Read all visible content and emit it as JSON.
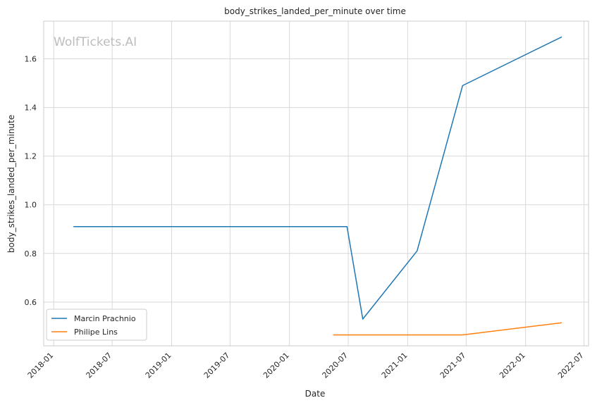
{
  "chart_data": {
    "type": "line",
    "title": "body_strikes_landed_per_minute over time",
    "xlabel": "Date",
    "ylabel": "body_strikes_landed_per_minute",
    "watermark": "WolfTickets.AI",
    "xlim": [
      "2017-12-01",
      "2022-07-15"
    ],
    "ylim": [
      0.42,
      1.755
    ],
    "x_ticks": [
      "2018-01",
      "2018-07",
      "2019-01",
      "2019-07",
      "2020-01",
      "2020-07",
      "2021-01",
      "2021-07",
      "2022-01",
      "2022-07"
    ],
    "y_ticks": [
      "0.6",
      "0.8",
      "1.0",
      "1.2",
      "1.4",
      "1.6"
    ],
    "grid": true,
    "legend_position": "lower-left",
    "series": [
      {
        "name": "Marcin Prachnio",
        "color": "#1f77b4",
        "x": [
          "2018-03-03",
          "2020-06-27",
          "2020-08-15",
          "2021-01-30",
          "2021-06-20",
          "2022-04-23"
        ],
        "y": [
          0.91,
          0.91,
          0.53,
          0.81,
          1.49,
          1.69
        ]
      },
      {
        "name": "Philipe Lins",
        "color": "#ff7f0e",
        "x": [
          "2020-05-15",
          "2021-06-20",
          "2022-04-23"
        ],
        "y": [
          0.465,
          0.465,
          0.515
        ]
      }
    ]
  }
}
